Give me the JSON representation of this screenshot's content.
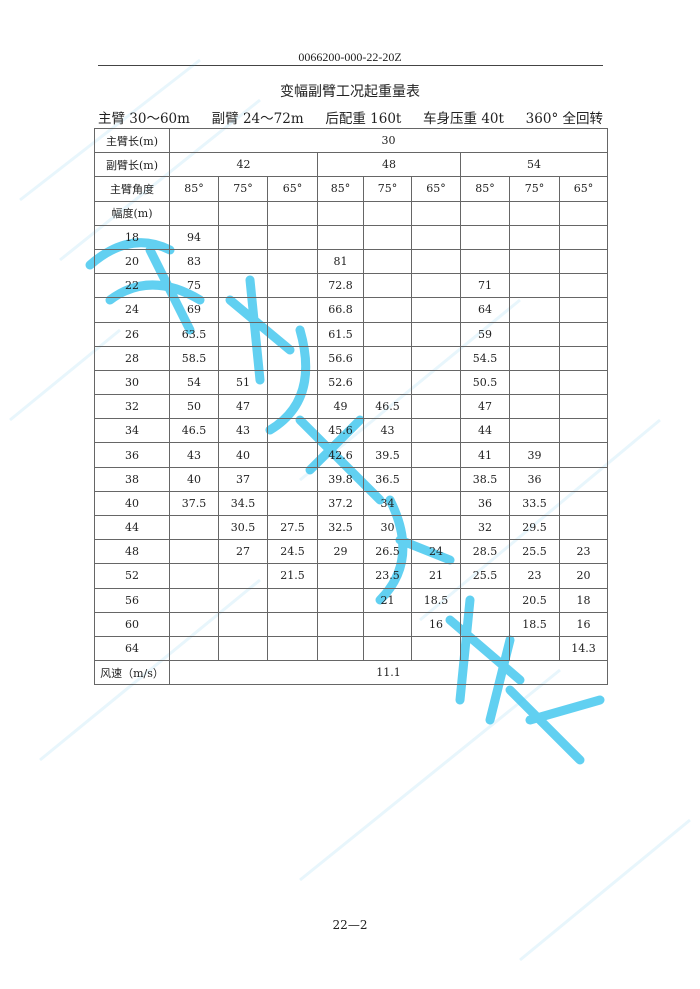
{
  "doc_number": "0066200-000-22-20Z",
  "title": "变幅副臂工况起重量表",
  "spec": [
    "主臂 30～60m",
    "副臂 24～72m",
    "后配重 160t",
    "车身压重 40t",
    "360° 全回转"
  ],
  "table": {
    "main_boom_label": "主臂长(m)",
    "main_boom_value": "30",
    "jib_label": "副臂长(m)",
    "jib_values": [
      "42",
      "48",
      "54"
    ],
    "angle_label": "主臂角度",
    "angles": [
      "85°",
      "75°",
      "65°",
      "85°",
      "75°",
      "65°",
      "85°",
      "75°",
      "65°"
    ],
    "radius_label": "幅度(m)",
    "rows": [
      {
        "radius": "18",
        "values": [
          "94",
          "",
          "",
          "",
          "",
          "",
          "",
          "",
          ""
        ]
      },
      {
        "radius": "20",
        "values": [
          "83",
          "",
          "",
          "81",
          "",
          "",
          "",
          "",
          ""
        ]
      },
      {
        "radius": "22",
        "values": [
          "75",
          "",
          "",
          "72.8",
          "",
          "",
          "71",
          "",
          ""
        ]
      },
      {
        "radius": "24",
        "values": [
          "69",
          "",
          "",
          "66.8",
          "",
          "",
          "64",
          "",
          ""
        ]
      },
      {
        "radius": "26",
        "values": [
          "63.5",
          "",
          "",
          "61.5",
          "",
          "",
          "59",
          "",
          ""
        ]
      },
      {
        "radius": "28",
        "values": [
          "58.5",
          "",
          "",
          "56.6",
          "",
          "",
          "54.5",
          "",
          ""
        ]
      },
      {
        "radius": "30",
        "values": [
          "54",
          "51",
          "",
          "52.6",
          "",
          "",
          "50.5",
          "",
          ""
        ]
      },
      {
        "radius": "32",
        "values": [
          "50",
          "47",
          "",
          "49",
          "46.5",
          "",
          "47",
          "",
          ""
        ]
      },
      {
        "radius": "34",
        "values": [
          "46.5",
          "43",
          "",
          "45.6",
          "43",
          "",
          "44",
          "",
          ""
        ]
      },
      {
        "radius": "36",
        "values": [
          "43",
          "40",
          "",
          "42.6",
          "39.5",
          "",
          "41",
          "39",
          ""
        ]
      },
      {
        "radius": "38",
        "values": [
          "40",
          "37",
          "",
          "39.8",
          "36.5",
          "",
          "38.5",
          "36",
          ""
        ]
      },
      {
        "radius": "40",
        "values": [
          "37.5",
          "34.5",
          "",
          "37.2",
          "34",
          "",
          "36",
          "33.5",
          ""
        ]
      },
      {
        "radius": "44",
        "values": [
          "",
          "30.5",
          "27.5",
          "32.5",
          "30",
          "",
          "32",
          "29.5",
          ""
        ]
      },
      {
        "radius": "48",
        "values": [
          "",
          "27",
          "24.5",
          "29",
          "26.5",
          "24",
          "28.5",
          "25.5",
          "23"
        ]
      },
      {
        "radius": "52",
        "values": [
          "",
          "",
          "21.5",
          "",
          "23.5",
          "21",
          "25.5",
          "23",
          "20"
        ]
      },
      {
        "radius": "56",
        "values": [
          "",
          "",
          "",
          "",
          "21",
          "18.5",
          "",
          "20.5",
          "18"
        ]
      },
      {
        "radius": "60",
        "values": [
          "",
          "",
          "",
          "",
          "",
          "16",
          "",
          "18.5",
          "16"
        ]
      },
      {
        "radius": "64",
        "values": [
          "",
          "",
          "",
          "",
          "",
          "",
          "",
          "",
          "14.3"
        ]
      }
    ],
    "wind_label": "风速（m/s）",
    "wind_value": "11.1"
  },
  "watermark": "安徽巨象吊装",
  "background_watermark": "成都巨象吊装",
  "watermark_color": "#46c8ef",
  "page_number": "22—2"
}
